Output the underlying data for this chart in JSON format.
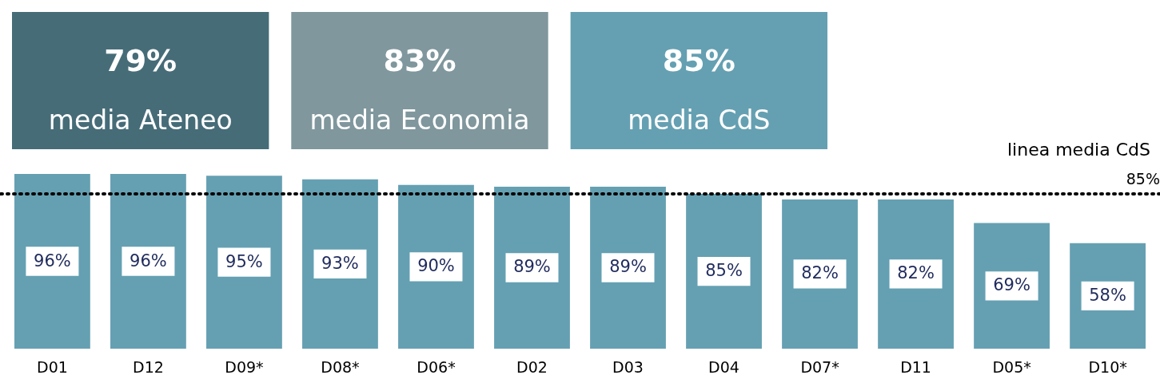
{
  "chart_data": [
    {
      "type": "other",
      "categories": [
        "media Ateneo",
        "media Economia",
        "media CdS"
      ],
      "values": [
        79,
        83,
        85
      ],
      "value_labels": [
        "79%",
        "83%",
        "85%"
      ],
      "colors": [
        "#466c78",
        "#7f979d",
        "#65a0b2"
      ]
    },
    {
      "type": "bar",
      "categories": [
        "D01",
        "D12",
        "D09*",
        "D08*",
        "D06*",
        "D02",
        "D03",
        "D04",
        "D07*",
        "D11",
        "D05*",
        "D10*"
      ],
      "series": [
        {
          "color": "#65a0b2",
          "values": [
            96,
            96,
            95,
            93,
            90,
            89,
            89,
            85,
            82,
            82,
            69,
            58
          ],
          "value_labels": [
            "96%",
            "96%",
            "95%",
            "93%",
            "90%",
            "89%",
            "89%",
            "85%",
            "82%",
            "82%",
            "69%",
            "58%"
          ]
        }
      ],
      "ref_lines": [
        {
          "axis": "y",
          "value": 85,
          "label": "85%",
          "color": "#000000",
          "line_style": "dotted"
        }
      ],
      "annotations": [
        "linea media CdS"
      ]
    }
  ]
}
